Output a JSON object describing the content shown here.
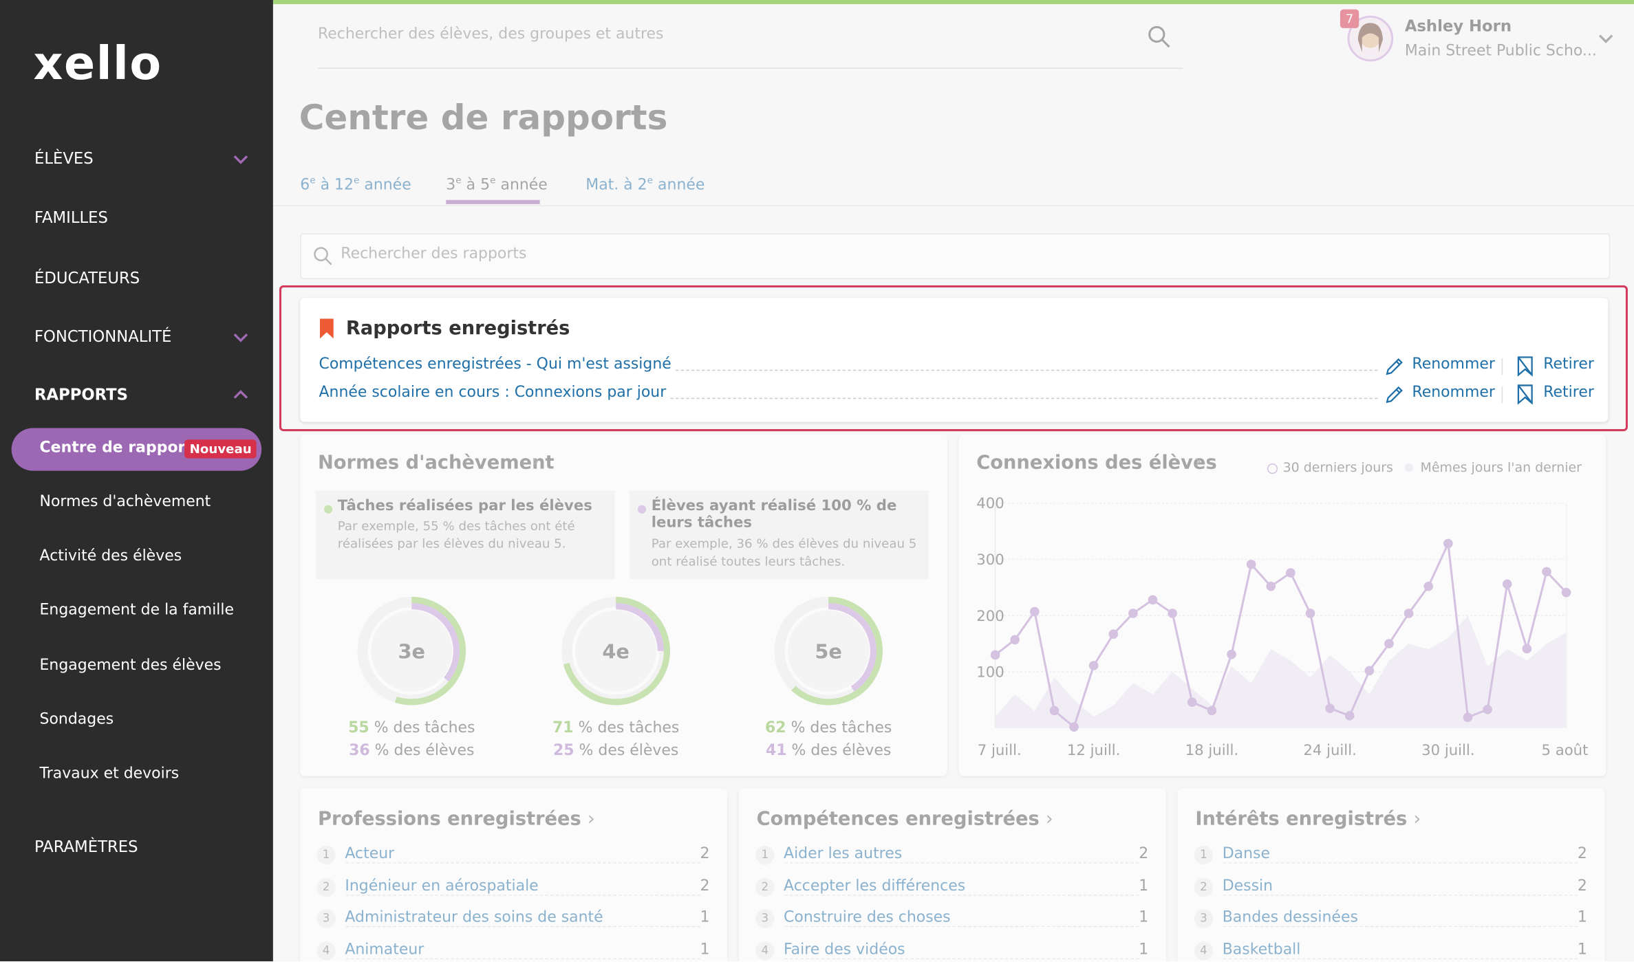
{
  "topbar": {
    "search_placeholder": "Rechercher des élèves, des groupes et autres",
    "notifications": 7,
    "user_name": "Ashley Horn",
    "school": "Main Street Public Scho..."
  },
  "sidebar": {
    "logo": "xello",
    "items": [
      "ÉLÈVES",
      "FAMILLES",
      "ÉDUCATEURS",
      "FONCTIONNALITÉ",
      "RAPPORTS"
    ],
    "subitems": [
      "Centre de rapports",
      "Normes d'achèvement",
      "Activité des élèves",
      "Engagement de la famille",
      "Engagement des élèves",
      "Sondages",
      "Travaux et devoirs"
    ],
    "badge": "Nouveau",
    "settings": "PARAMÈTRES"
  },
  "page": {
    "title": "Centre de rapports",
    "tabs": [
      [
        "6",
        "e",
        " à 12",
        "e",
        " année"
      ],
      [
        "3",
        "e",
        " à 5",
        "e",
        " année"
      ],
      [
        "Mat. à 2",
        "e",
        " année"
      ]
    ],
    "report_search_placeholder": "Rechercher des rapports"
  },
  "saved_reports": {
    "title": "Rapports enregistrés",
    "items": [
      "Compétences enregistrées - Qui m'est assigné",
      "Année scolaire en cours : Connexions par jour"
    ],
    "rename": "Renommer",
    "remove": "Retirer"
  },
  "completion": {
    "title": "Normes d'achèvement",
    "legend": [
      {
        "title": "Tâches réalisées par les élèves",
        "text": "Par exemple, 55 % des tâches ont été réalisées par les élèves du niveau 5.",
        "color": "#9ccf6e"
      },
      {
        "title": "Élèves ayant réalisé 100 % de leurs tâches",
        "text": "Par exemple, 36 % des élèves du niveau 5 ont réalisé toutes leurs tâches.",
        "color": "#c39bd8"
      }
    ],
    "grades": [
      {
        "label": "3e",
        "tasks": 55,
        "students": 36
      },
      {
        "label": "4e",
        "tasks": 71,
        "students": 25
      },
      {
        "label": "5e",
        "tasks": 62,
        "students": 41
      }
    ],
    "tasks_suffix": " % des tâches",
    "students_suffix": " % des élèves"
  },
  "chart_data": {
    "type": "line",
    "title": "Connexions des élèves",
    "categories": [
      "7 juill.",
      null,
      null,
      null,
      null,
      "12 juill.",
      null,
      null,
      null,
      null,
      null,
      "18 juill.",
      null,
      null,
      null,
      null,
      null,
      "24 juill.",
      null,
      null,
      null,
      null,
      null,
      "30 juill.",
      null,
      null,
      null,
      null,
      null,
      "5 août"
    ],
    "series": [
      {
        "name": "30 derniers jours",
        "color": "#b48fcc",
        "values": [
          130,
          157,
          207,
          31,
          2,
          111,
          167,
          204,
          228,
          204,
          46,
          31,
          131,
          291,
          252,
          276,
          204,
          35,
          22,
          102,
          150,
          204,
          252,
          328,
          19,
          33,
          256,
          141,
          278,
          241
        ]
      },
      {
        "name": "Mêmes jours l'an dernier",
        "color": "#ece5f2",
        "values": [
          20,
          60,
          30,
          90,
          50,
          20,
          40,
          80,
          60,
          100,
          70,
          40,
          110,
          80,
          140,
          120,
          90,
          130,
          100,
          60,
          120,
          150,
          140,
          160,
          200,
          110,
          140,
          120,
          150,
          170
        ]
      }
    ],
    "ylim": [
      0,
      400
    ],
    "yticks": [
      100,
      200,
      300,
      400
    ],
    "grid": true
  },
  "lists": [
    {
      "title": "Professions enregistrées",
      "items": [
        {
          "rank": 1,
          "name": "Acteur",
          "count": 2
        },
        {
          "rank": 2,
          "name": "Ingénieur en aérospatiale",
          "count": 2
        },
        {
          "rank": 3,
          "name": "Administrateur des soins de santé",
          "count": 1
        },
        {
          "rank": 4,
          "name": "Animateur",
          "count": 1
        }
      ]
    },
    {
      "title": "Compétences enregistrées",
      "items": [
        {
          "rank": 1,
          "name": "Aider les autres",
          "count": 2
        },
        {
          "rank": 2,
          "name": "Accepter les différences",
          "count": 1
        },
        {
          "rank": 3,
          "name": "Construire des choses",
          "count": 1
        },
        {
          "rank": 4,
          "name": "Faire des vidéos",
          "count": 1
        }
      ]
    },
    {
      "title": "Intérêts enregistrés",
      "items": [
        {
          "rank": 1,
          "name": "Danse",
          "count": 2
        },
        {
          "rank": 2,
          "name": "Dessin",
          "count": 2
        },
        {
          "rank": 3,
          "name": "Bandes dessinées",
          "count": 1
        },
        {
          "rank": 4,
          "name": "Basketball",
          "count": 1
        }
      ]
    }
  ]
}
